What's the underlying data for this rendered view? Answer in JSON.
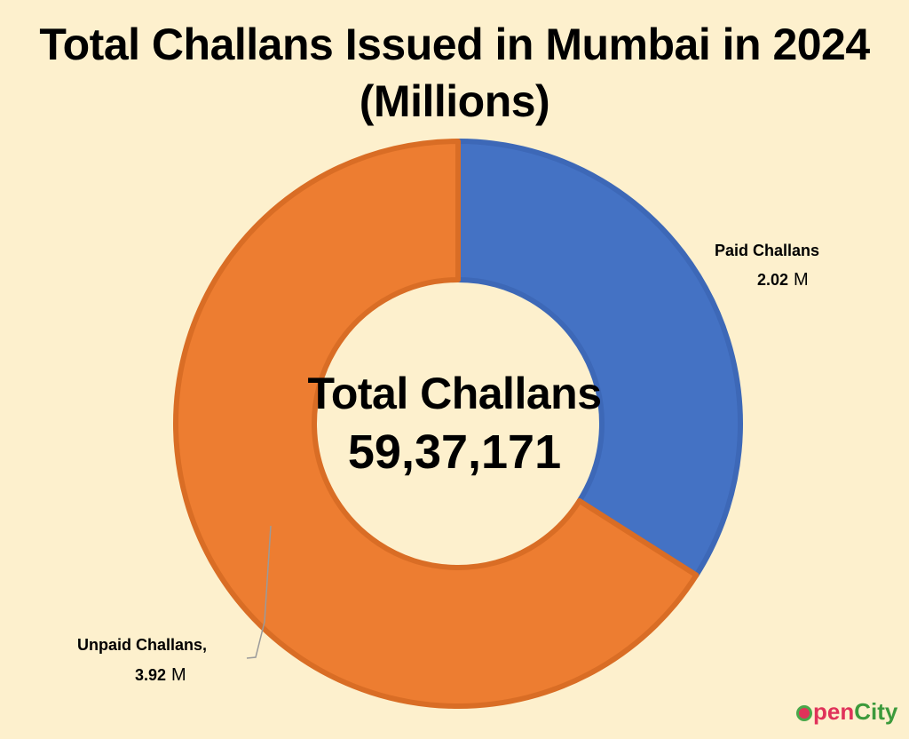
{
  "chart_data": {
    "type": "pie",
    "variant": "donut",
    "title_line1": "Total Challans Issued in Mumbai in 2024",
    "title_line2": "(Millions)",
    "center_label": "Total Challans",
    "center_value": "59,37,171",
    "slices": [
      {
        "name": "Paid Challans",
        "value": 2.02,
        "value_text": "2.02",
        "unit": "M",
        "color": "#4472c4",
        "edge_color": "#3d68b7"
      },
      {
        "name": "Unpaid Challans,",
        "value": 3.92,
        "value_text": "3.92",
        "unit": "M",
        "color": "#ed7d31",
        "edge_color": "#d96d25"
      }
    ],
    "start_angle_deg": 0,
    "legend": "none"
  },
  "branding": {
    "logo_text_1": "pen",
    "logo_text_2": "City",
    "logo_colors": [
      "#e0325a",
      "#3c9a3c"
    ]
  },
  "background_color": "#fdf0cd"
}
